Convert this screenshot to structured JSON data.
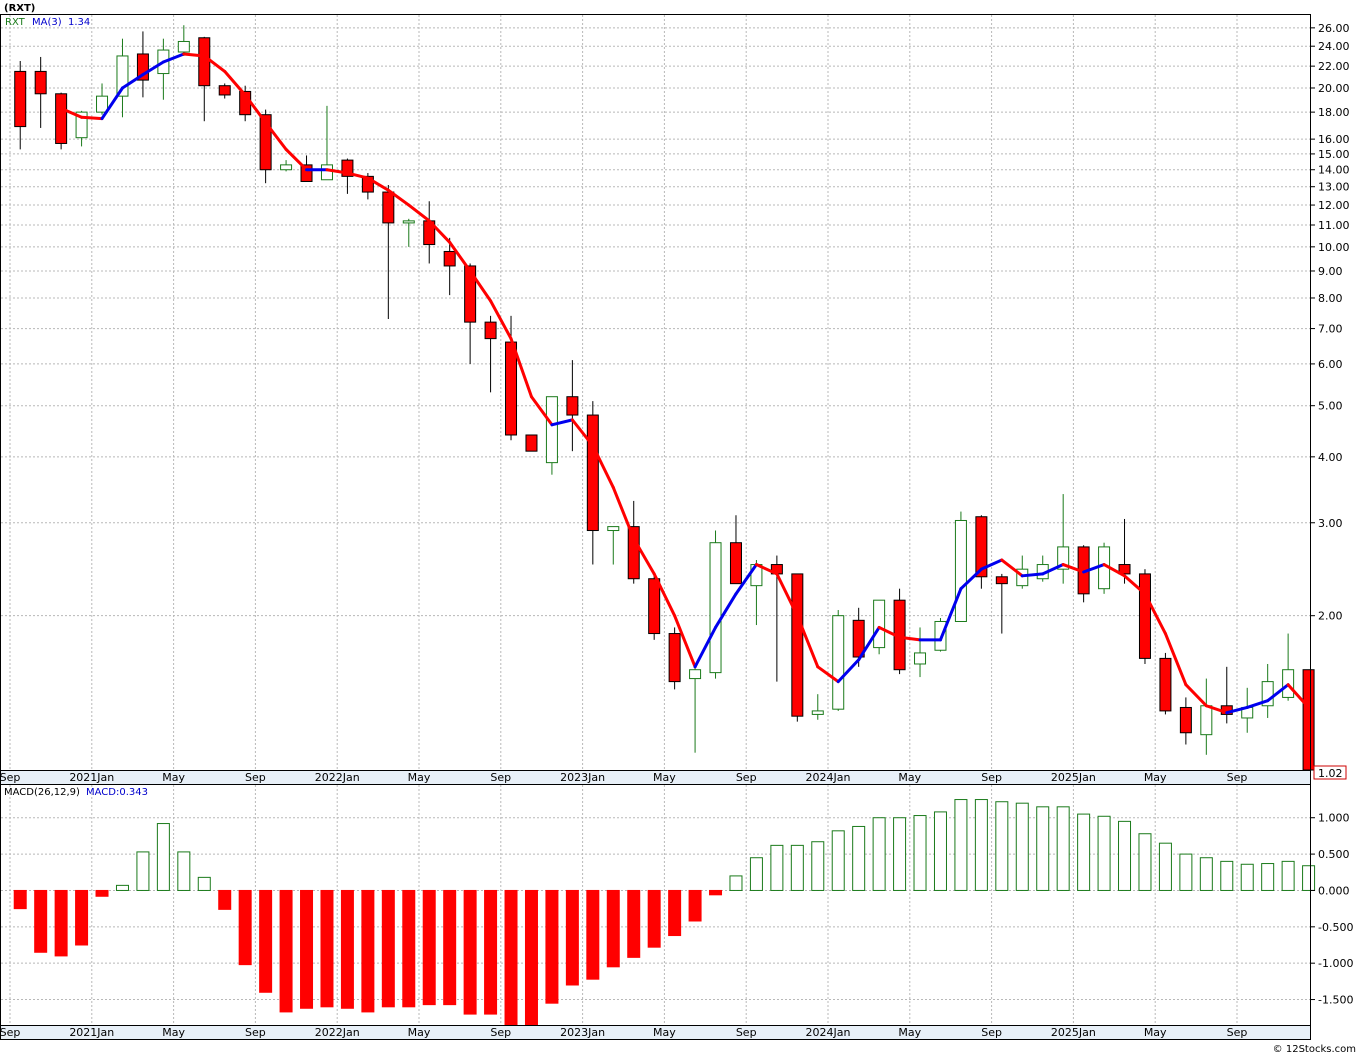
{
  "header": {
    "ticker": "(RXT)"
  },
  "footer": {
    "credit": "© 12Stocks.com"
  },
  "colors": {
    "up": "#1a7a1a",
    "down": "#ff0000",
    "ma_up": "#0000ee",
    "ma_down": "#ff0000",
    "macd_line": "#0000cc"
  },
  "chart_data": [
    {
      "type": "candlestick",
      "title": "(RXT)",
      "legend": {
        "symbol": "RXT",
        "ma_label": "MA(3)",
        "ma_value": "1.34"
      },
      "last_price_tag": "1.02",
      "y_scale": "log",
      "ylim": [
        1.02,
        27.5
      ],
      "y_ticks": [
        "26.00",
        "24.00",
        "22.00",
        "20.00",
        "18.00",
        "16.00",
        "15.00",
        "14.00",
        "13.00",
        "12.00",
        "11.00",
        "10.00",
        "9.00",
        "8.00",
        "7.00",
        "6.00",
        "5.00",
        "4.00",
        "3.00",
        "2.00"
      ],
      "x_labels": [
        "Sep",
        "2021Jan",
        "May",
        "Sep",
        "2022Jan",
        "May",
        "Sep",
        "2023Jan",
        "May",
        "Sep",
        "2024Jan",
        "May",
        "Sep",
        "2025Jan",
        "May",
        "Sep"
      ],
      "x_label_months": [
        0,
        4,
        8,
        12,
        16,
        20,
        24,
        28,
        32,
        36,
        40,
        44,
        48,
        52,
        56,
        60
      ],
      "candles": [
        [
          21.5,
          22.5,
          15.3,
          16.9
        ],
        [
          21.5,
          22.9,
          16.8,
          19.5
        ],
        [
          19.5,
          19.6,
          15.3,
          15.7
        ],
        [
          16.1,
          18.1,
          15.5,
          18.0
        ],
        [
          18.0,
          20.4,
          17.8,
          19.3
        ],
        [
          19.3,
          24.8,
          17.6,
          23.0
        ],
        [
          23.2,
          25.6,
          19.2,
          20.7
        ],
        [
          21.3,
          24.8,
          19.0,
          23.6
        ],
        [
          23.4,
          26.3,
          23.0,
          24.5
        ],
        [
          24.9,
          25.0,
          17.3,
          20.2
        ],
        [
          20.2,
          20.4,
          19.1,
          19.4
        ],
        [
          19.7,
          20.2,
          17.3,
          17.8
        ],
        [
          17.8,
          18.2,
          13.2,
          14.0
        ],
        [
          14.0,
          14.6,
          13.9,
          14.3
        ],
        [
          14.3,
          14.9,
          13.3,
          13.3
        ],
        [
          13.4,
          18.5,
          13.4,
          14.3
        ],
        [
          14.6,
          14.7,
          12.6,
          13.6
        ],
        [
          13.6,
          13.8,
          12.3,
          12.7
        ],
        [
          12.7,
          13.1,
          7.3,
          11.1
        ],
        [
          11.1,
          11.3,
          10.0,
          11.2
        ],
        [
          11.2,
          12.2,
          9.3,
          10.1
        ],
        [
          9.8,
          10.4,
          8.1,
          9.2
        ],
        [
          9.2,
          9.3,
          6.0,
          7.2
        ],
        [
          7.2,
          7.4,
          5.3,
          6.7
        ],
        [
          6.6,
          7.4,
          4.3,
          4.4
        ],
        [
          4.4,
          4.4,
          4.1,
          4.1
        ],
        [
          3.9,
          5.2,
          3.7,
          5.2
        ],
        [
          5.2,
          6.1,
          4.1,
          4.8
        ],
        [
          4.8,
          5.1,
          2.5,
          2.9
        ],
        [
          2.9,
          2.95,
          2.5,
          2.95
        ],
        [
          2.95,
          3.3,
          2.3,
          2.35
        ],
        [
          2.35,
          2.4,
          1.8,
          1.85
        ],
        [
          1.85,
          1.9,
          1.45,
          1.5
        ],
        [
          1.52,
          1.6,
          1.1,
          1.58
        ],
        [
          1.56,
          2.9,
          1.52,
          2.75
        ],
        [
          2.75,
          3.1,
          2.3,
          2.3
        ],
        [
          2.28,
          2.55,
          1.92,
          2.5
        ],
        [
          2.5,
          2.6,
          1.5,
          2.4
        ],
        [
          2.4,
          2.4,
          1.26,
          1.29
        ],
        [
          1.3,
          1.42,
          1.27,
          1.32
        ],
        [
          1.33,
          2.05,
          1.32,
          2.0
        ],
        [
          1.96,
          2.07,
          1.6,
          1.67
        ],
        [
          1.74,
          2.14,
          1.69,
          2.14
        ],
        [
          2.14,
          2.25,
          1.55,
          1.58
        ],
        [
          1.62,
          1.9,
          1.53,
          1.7
        ],
        [
          1.72,
          1.98,
          1.71,
          1.95
        ],
        [
          1.95,
          3.15,
          1.95,
          3.03
        ],
        [
          3.08,
          3.1,
          2.25,
          2.37
        ],
        [
          2.37,
          2.4,
          1.85,
          2.3
        ],
        [
          2.28,
          2.6,
          2.25,
          2.45
        ],
        [
          2.35,
          2.6,
          2.32,
          2.5
        ],
        [
          2.45,
          3.4,
          2.3,
          2.7
        ],
        [
          2.7,
          2.72,
          2.12,
          2.2
        ],
        [
          2.25,
          2.75,
          2.2,
          2.7
        ],
        [
          2.5,
          3.05,
          2.3,
          2.4
        ],
        [
          2.4,
          2.45,
          1.62,
          1.66
        ],
        [
          1.66,
          1.7,
          1.3,
          1.32
        ],
        [
          1.34,
          1.4,
          1.14,
          1.2
        ],
        [
          1.19,
          1.52,
          1.09,
          1.35
        ],
        [
          1.35,
          1.6,
          1.25,
          1.3
        ],
        [
          1.28,
          1.46,
          1.2,
          1.34
        ],
        [
          1.35,
          1.62,
          1.28,
          1.5
        ],
        [
          1.4,
          1.85,
          1.38,
          1.58
        ],
        [
          1.58,
          1.58,
          1.02,
          1.02
        ]
      ],
      "ma3": [
        null,
        null,
        18.3,
        17.6,
        17.5,
        20.0,
        21.2,
        22.4,
        23.2,
        23.0,
        21.5,
        19.4,
        17.2,
        15.3,
        14.0,
        14.0,
        13.8,
        13.5,
        12.8,
        12.0,
        11.2,
        10.2,
        9.0,
        7.9,
        6.7,
        5.2,
        4.6,
        4.7,
        4.2,
        3.5,
        2.8,
        2.4,
        2.0,
        1.6,
        1.9,
        2.2,
        2.5,
        2.4,
        2.0,
        1.6,
        1.5,
        1.65,
        1.9,
        1.82,
        1.8,
        1.8,
        2.25,
        2.45,
        2.55,
        2.38,
        2.4,
        2.5,
        2.42,
        2.5,
        2.38,
        2.2,
        1.85,
        1.48,
        1.35,
        1.31,
        1.34,
        1.38,
        1.48,
        1.34
      ],
      "series": [
        {
          "name": "RXT",
          "type": "candlestick"
        },
        {
          "name": "MA(3)",
          "type": "line"
        }
      ]
    },
    {
      "type": "bar",
      "legend": {
        "label": "MACD(26,12,9)",
        "value_label": "MACD:0.343"
      },
      "ylim": [
        -1.85,
        1.45
      ],
      "y_ticks": [
        "1.000",
        "0.500",
        "0.000",
        "-0.500",
        "-1.000",
        "-1.500"
      ],
      "x_labels": [
        "Sep",
        "2021Jan",
        "May",
        "Sep",
        "2022Jan",
        "May",
        "Sep",
        "2023Jan",
        "May",
        "Sep",
        "2024Jan",
        "May",
        "Sep",
        "2025Jan",
        "May",
        "Sep"
      ],
      "values": [
        -0.25,
        -0.85,
        -0.9,
        -0.75,
        -0.08,
        0.07,
        0.53,
        0.92,
        0.53,
        0.18,
        -0.26,
        -1.02,
        -1.4,
        -1.67,
        -1.62,
        -1.6,
        -1.62,
        -1.67,
        -1.6,
        -1.6,
        -1.57,
        -1.57,
        -1.7,
        -1.7,
        -1.85,
        -1.85,
        -1.55,
        -1.3,
        -1.22,
        -1.05,
        -0.92,
        -0.78,
        -0.62,
        -0.42,
        -0.06,
        0.2,
        0.45,
        0.62,
        0.62,
        0.67,
        0.82,
        0.88,
        1.0,
        1.0,
        1.03,
        1.08,
        1.25,
        1.25,
        1.22,
        1.2,
        1.15,
        1.15,
        1.05,
        1.02,
        0.95,
        0.78,
        0.65,
        0.5,
        0.45,
        0.4,
        0.36,
        0.37,
        0.4,
        0.34
      ]
    }
  ]
}
